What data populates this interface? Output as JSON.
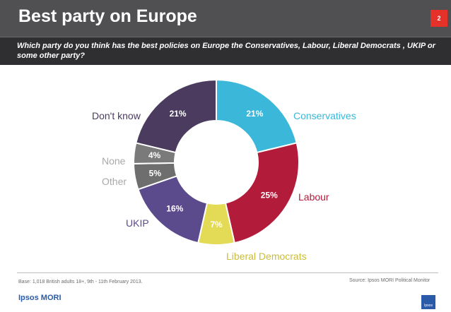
{
  "header": {
    "title": "Best party on Europe",
    "page_number": "2"
  },
  "question": "Which party do you think has the best policies on Europe the Conservatives, Labour, Liberal Democrats , UKIP or some other party?",
  "chart_data": {
    "type": "pie",
    "variant": "donut",
    "categories": [
      "Conservatives",
      "Labour",
      "Liberal Democrats",
      "UKIP",
      "Other",
      "None",
      "Don't know"
    ],
    "values": [
      21,
      25,
      7,
      16,
      5,
      4,
      21
    ],
    "value_labels": [
      "21%",
      "25%",
      "7%",
      "16%",
      "5%",
      "4%",
      "21%"
    ],
    "colors": [
      "#3ab7d9",
      "#b31b3a",
      "#e3da55",
      "#5b4a8c",
      "#6e6e6e",
      "#7a7a7a",
      "#4b3b5f"
    ],
    "label_colors": [
      "#3ab7d9",
      "#b31b3a",
      "#c9bd3a",
      "#5b4a8c",
      "#a9a9a9",
      "#a9a9a9",
      "#4b3b5f"
    ],
    "unit": "%"
  },
  "footer": {
    "base": "Base: 1,018 British adults 18+, 9th - 11th February 2013.",
    "source": "Source: Ipsos MORI Political Monitor",
    "logo": "Ipsos MORI",
    "logo_box": "Ipsos"
  }
}
